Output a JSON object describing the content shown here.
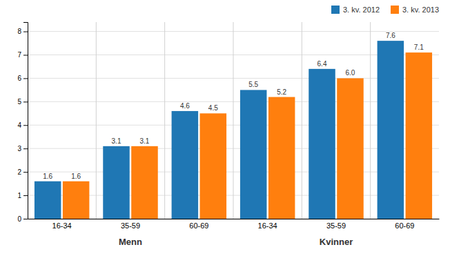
{
  "chart_data": {
    "type": "bar",
    "categories": [
      "16-34",
      "35-59",
      "60-69",
      "16-34",
      "35-59",
      "60-69"
    ],
    "series": [
      {
        "name": "3. kv. 2012",
        "values": [
          1.6,
          3.1,
          4.6,
          5.5,
          6.4,
          7.6
        ]
      },
      {
        "name": "3. kv. 2013",
        "values": [
          1.6,
          3.1,
          4.5,
          5.2,
          6.0,
          7.1
        ],
        "value_labels": [
          "1.6",
          "3.1",
          "4.5",
          "5.2",
          "6.0",
          "7.1"
        ]
      }
    ],
    "annotations": [
      "Menn",
      "Kvinner"
    ],
    "ylim": [
      0,
      8.4
    ],
    "yticks": [
      0,
      1,
      2,
      3,
      4,
      5,
      6,
      7,
      8
    ],
    "grid": true,
    "legend": "upper right",
    "data_labels": true
  }
}
